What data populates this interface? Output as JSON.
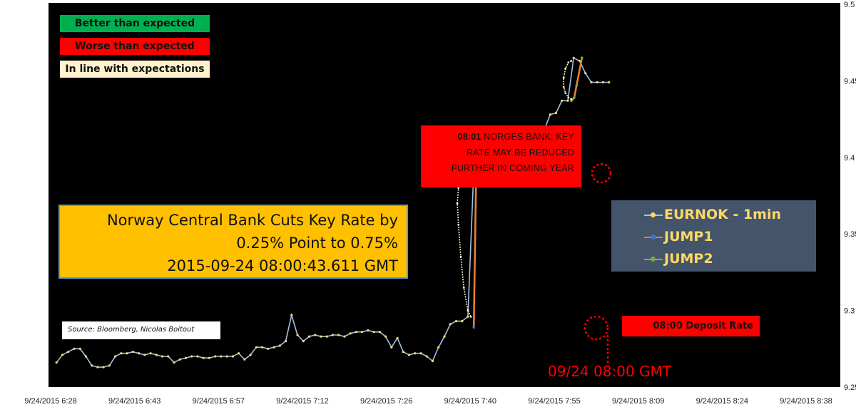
{
  "chart_data": {
    "type": "line",
    "title": "",
    "xlabel": "",
    "ylabel": "",
    "ylim": [
      9.25,
      9.5
    ],
    "y_ticks": [
      "9.25",
      "9.3",
      "9.35",
      "9.4",
      "9.45",
      "9.5"
    ],
    "x_ticks": [
      "9/24/2015 6:28",
      "9/24/2015 6:43",
      "9/24/2015 6:57",
      "9/24/2015 7:12",
      "9/24/2015 7:26",
      "9/24/2015 7:40",
      "9/24/2015 7:55",
      "9/24/2015 8:09",
      "9/24/2015 8:24",
      "9/24/2015 8:38"
    ],
    "x_unit": "minutes since 6:28",
    "grid": false,
    "plot_background": "#000000",
    "series": [
      {
        "name": "EURNOK - 1min",
        "color": "#9dc3e6",
        "marker_color": "#ffd966",
        "x": [
          1,
          2,
          3,
          4,
          5,
          6,
          7,
          8,
          9,
          10,
          11,
          12,
          13,
          14,
          15,
          16,
          17,
          18,
          19,
          20,
          21,
          22,
          23,
          24,
          25,
          26,
          27,
          28,
          29,
          30,
          31,
          32,
          33,
          34,
          35,
          36,
          37,
          38,
          39,
          40,
          41,
          42,
          43,
          44,
          45,
          46,
          47,
          48,
          49,
          50,
          51,
          52,
          53,
          54,
          55,
          56,
          57,
          58,
          59,
          60,
          61,
          62,
          63,
          64,
          65,
          66,
          67,
          68,
          69,
          70,
          71,
          72,
          73,
          74,
          75,
          76,
          77,
          78,
          79,
          80,
          81,
          82,
          83,
          84,
          85,
          86,
          87,
          88,
          89,
          90,
          91,
          92,
          93,
          94,
          95
        ],
        "values": [
          9.266,
          9.271,
          9.273,
          9.275,
          9.275,
          9.27,
          9.264,
          9.263,
          9.263,
          9.264,
          9.27,
          9.272,
          9.272,
          9.273,
          9.272,
          9.271,
          9.272,
          9.271,
          9.27,
          9.27,
          9.266,
          9.268,
          9.269,
          9.27,
          9.27,
          9.269,
          9.269,
          9.27,
          9.27,
          9.27,
          9.27,
          9.272,
          9.268,
          9.271,
          9.276,
          9.276,
          9.275,
          9.276,
          9.277,
          9.28,
          9.297,
          9.284,
          9.28,
          9.283,
          9.284,
          9.283,
          9.283,
          9.284,
          9.284,
          9.283,
          9.285,
          9.286,
          9.286,
          9.287,
          9.286,
          9.286,
          9.283,
          9.276,
          9.282,
          9.273,
          9.271,
          9.272,
          9.272,
          9.27,
          9.267,
          9.276,
          9.283,
          9.291,
          9.293,
          9.293,
          9.296,
          9.392,
          9.39,
          9.385,
          9.389,
          9.395,
          9.388,
          9.399,
          9.395,
          9.403,
          9.41,
          9.417,
          9.418,
          9.418,
          9.428,
          9.429,
          9.437,
          9.437,
          9.465,
          9.463,
          9.455,
          9.449,
          9.449,
          9.449,
          9.449
        ]
      },
      {
        "name": "JUMP1",
        "color": "#ed7d31",
        "marker_color": "#4472c4",
        "x": [
          72,
          72.4,
          73,
          73.6,
          74.2,
          74.8,
          75.3,
          76,
          77
        ],
        "values": [
          9.289,
          9.39,
          9.415,
          9.404,
          9.396,
          9.404,
          9.392,
          9.391,
          9.385
        ]
      },
      {
        "name": "JUMP2",
        "color": "#ed7d31",
        "marker_color": "#70ad47",
        "x": [
          88.6,
          89.1,
          89.5,
          90.4
        ],
        "values": [
          9.437,
          9.439,
          9.447,
          9.465
        ]
      },
      {
        "name": "",
        "color": "#fff2cc",
        "x": [
          71.5,
          71,
          70.3,
          69.8,
          69.4,
          69.2,
          69.4,
          69.8,
          70.6,
          71.5
        ],
        "values": [
          9.296,
          9.3,
          9.315,
          9.335,
          9.356,
          9.37,
          9.38,
          9.387,
          9.39,
          9.39
        ]
      },
      {
        "name": "",
        "color": "#fff2cc",
        "x": [
          88.6,
          88.1,
          87.6,
          87.3,
          87.3,
          87.6,
          88.1,
          88.6
        ],
        "values": [
          9.463,
          9.462,
          9.458,
          9.452,
          9.446,
          9.442,
          9.439,
          9.438
        ]
      }
    ]
  },
  "labels": {
    "better": "Better than expected",
    "worse": "Worse than expected",
    "inline": "In line with expectations",
    "headline_1": "Norway Central Bank Cuts Key Rate by",
    "headline_2": "0.25% Point to 0.75%",
    "headline_3": "2015-09-24 08:00:43.611 GMT",
    "source": "Source: Bloomberg, Nicolas Boitout",
    "norges_time": "08:01",
    "norges_1": " NORGES BANK: KEY",
    "norges_2": "RATE MAY BE REDUCED",
    "norges_3": "FURTHER IN COMING YEAR",
    "deposit": "08:00 Deposit Rate",
    "gmt": "09/24 08:00 GMT",
    "legend": [
      "EURNOK - 1min",
      "JUMP1",
      "JUMP2"
    ]
  },
  "colors": {
    "better": "#00b050",
    "worse": "#ff0000",
    "inline": "#fff2cc",
    "headline_bg": "#ffc000",
    "legend_bg": "#44546a",
    "legend_text": "#ffd966",
    "annotation": "#ff0000"
  }
}
